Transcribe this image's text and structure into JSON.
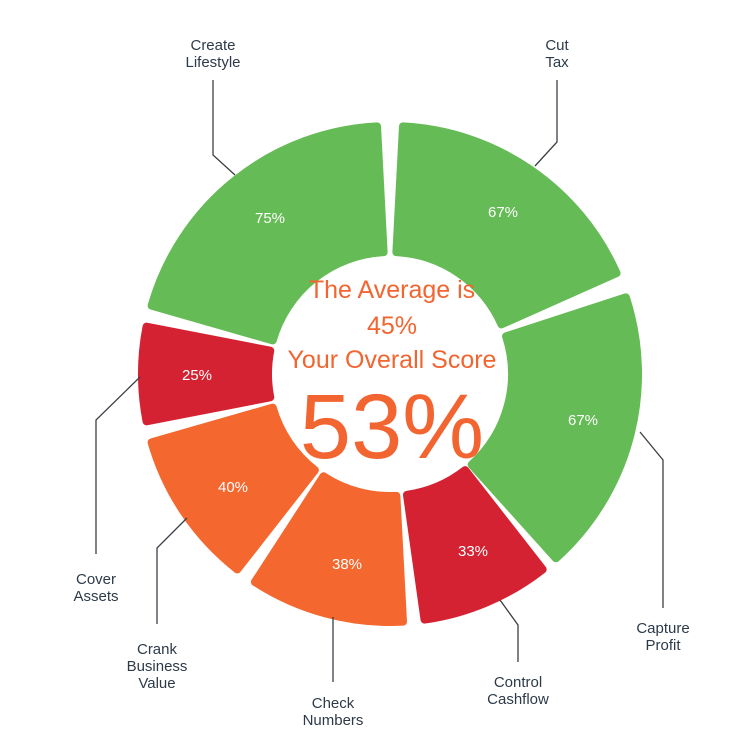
{
  "chart_data": {
    "type": "donut",
    "center": {
      "line1": "The Average is",
      "line2": "45%",
      "line3": "Your Overall Score",
      "score": "53%"
    },
    "segments": [
      {
        "name": [
          "Cut",
          "Tax"
        ],
        "value": 67,
        "label": "67%",
        "color": "#65bb55"
      },
      {
        "name": [
          "Capture",
          "Profit"
        ],
        "value": 67,
        "label": "67%",
        "color": "#65bb55"
      },
      {
        "name": [
          "Control",
          "Cashflow"
        ],
        "value": 33,
        "label": "33%",
        "color": "#d42233"
      },
      {
        "name": [
          "Check",
          "Numbers"
        ],
        "value": 38,
        "label": "38%",
        "color": "#f4672e"
      },
      {
        "name": [
          "Crank",
          "Business",
          "Value"
        ],
        "value": 40,
        "label": "40%",
        "color": "#f4672e"
      },
      {
        "name": [
          "Cover",
          "Assets"
        ],
        "value": 25,
        "label": "25%",
        "color": "#d42233"
      },
      {
        "name": [
          "Create",
          "Lifestyle"
        ],
        "value": 75,
        "label": "75%",
        "color": "#65bb55"
      }
    ]
  }
}
